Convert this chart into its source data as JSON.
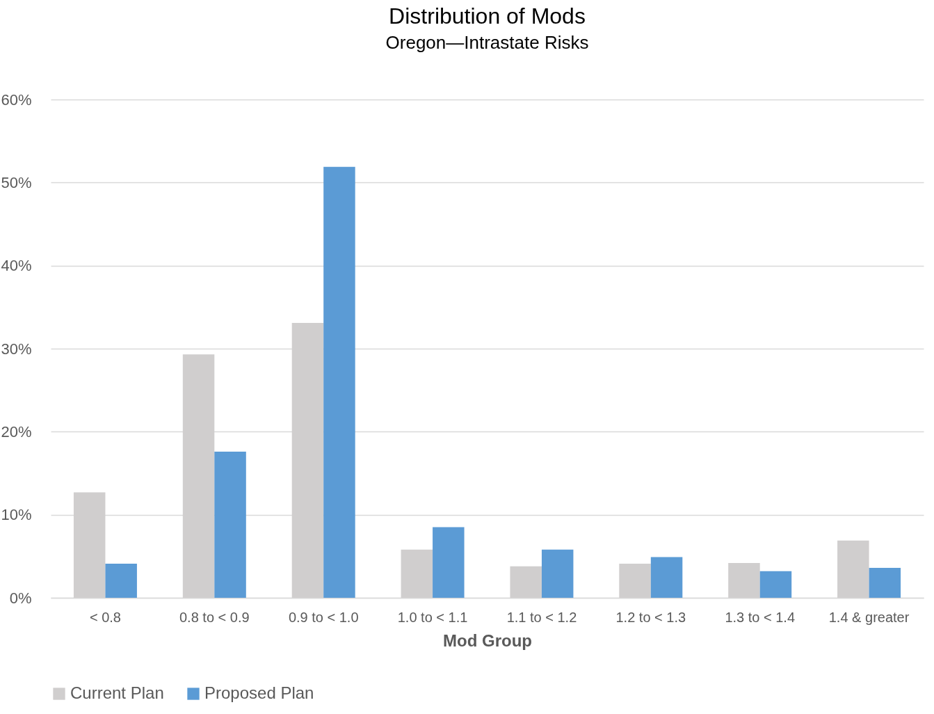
{
  "chart_data": {
    "type": "bar",
    "title": "Distribution of Mods",
    "subtitle": "Oregon—Intrastate Risks",
    "xlabel": "Mod Group",
    "categories": [
      "< 0.8",
      "0.8 to < 0.9",
      "0.9 to < 1.0",
      "1.0 to < 1.1",
      "1.1 to < 1.2",
      "1.2 to < 1.3",
      "1.3 to < 1.4",
      "1.4 & greater"
    ],
    "series": [
      {
        "name": "Current Plan",
        "color": "#d0cece",
        "values": [
          12.7,
          29.3,
          33.1,
          5.8,
          3.8,
          4.1,
          4.2,
          6.9
        ]
      },
      {
        "name": "Proposed Plan",
        "color": "#5b9bd5",
        "values": [
          4.1,
          17.6,
          51.9,
          8.5,
          5.8,
          4.9,
          3.2,
          3.6
        ]
      }
    ],
    "ylim": [
      0,
      60
    ],
    "yticks": [
      {
        "value": 0,
        "label": "0%"
      },
      {
        "value": 10,
        "label": "10%"
      },
      {
        "value": 20,
        "label": "20%"
      },
      {
        "value": 30,
        "label": "30%"
      },
      {
        "value": 40,
        "label": "40%"
      },
      {
        "value": 50,
        "label": "50%"
      },
      {
        "value": 60,
        "label": "60%"
      }
    ],
    "grid": "y",
    "legend": "bottom"
  }
}
